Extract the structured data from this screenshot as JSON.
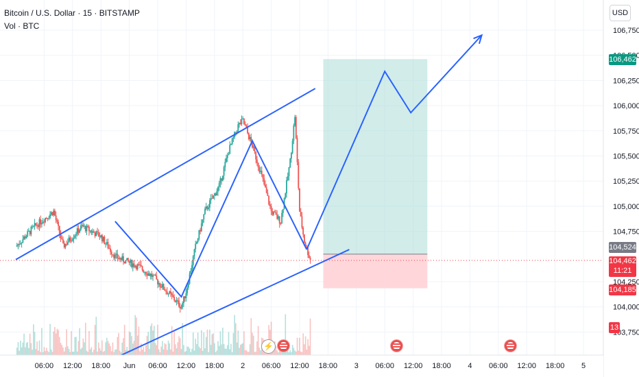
{
  "legend": {
    "title": "Bitcoin / U.S. Dollar · 15 · BITSTAMP",
    "volume": "Vol · BTC"
  },
  "currency": "USD",
  "price_axis": [
    {
      "label": "106,750",
      "value": 106750
    },
    {
      "label": "106,500",
      "value": 106500
    },
    {
      "label": "106,250",
      "value": 106250
    },
    {
      "label": "106,000",
      "value": 106000
    },
    {
      "label": "105,750",
      "value": 105750
    },
    {
      "label": "105,500",
      "value": 105500
    },
    {
      "label": "105,250",
      "value": 105250
    },
    {
      "label": "105,000",
      "value": 105000
    },
    {
      "label": "104,750",
      "value": 104750
    },
    {
      "label": "104,250",
      "value": 104250
    },
    {
      "label": "104,000",
      "value": 104000
    },
    {
      "label": "103,750",
      "value": 103750
    }
  ],
  "time_axis": [
    {
      "label": "06:00",
      "t": 6
    },
    {
      "label": "12:00",
      "t": 12
    },
    {
      "label": "18:00",
      "t": 18
    },
    {
      "label": "Jun",
      "t": 24
    },
    {
      "label": "06:00",
      "t": 30
    },
    {
      "label": "12:00",
      "t": 36
    },
    {
      "label": "18:00",
      "t": 42
    },
    {
      "label": "2",
      "t": 48
    },
    {
      "label": "06:00",
      "t": 54
    },
    {
      "label": "12:00",
      "t": 60
    },
    {
      "label": "18:00",
      "t": 66
    },
    {
      "label": "3",
      "t": 72
    },
    {
      "label": "06:00",
      "t": 78
    },
    {
      "label": "12:00",
      "t": 84
    },
    {
      "label": "18:00",
      "t": 90
    },
    {
      "label": "4",
      "t": 96
    },
    {
      "label": "06:00",
      "t": 102
    },
    {
      "label": "12:00",
      "t": 108
    },
    {
      "label": "18:00",
      "t": 114
    },
    {
      "label": "5",
      "t": 120
    },
    {
      "label": "06:00",
      "t": 126
    }
  ],
  "badges": {
    "target": "106,462",
    "entry": "104,524",
    "last_price": "104,462",
    "countdown": "11:21",
    "stop": "104,185",
    "volume": "13"
  },
  "colors": {
    "up": "#26a69a",
    "down": "#ef5350",
    "drawing": "#2962ff",
    "target_zone": "#b2dfdb",
    "stop_zone": "#ffcdd2",
    "target_badge": "#089981",
    "entry_badge": "#787b86",
    "price_badge": "#f23645"
  },
  "chart_data": {
    "type": "candlestick",
    "symbol": "Bitcoin / U.S. Dollar",
    "interval": "15",
    "exchange": "BITSTAMP",
    "y_range": [
      103700,
      106850
    ],
    "last_price": 104462,
    "path_points": [
      {
        "t": 0,
        "p": 104600
      },
      {
        "t": 4,
        "p": 104800
      },
      {
        "t": 8,
        "p": 104950
      },
      {
        "t": 10,
        "p": 104600
      },
      {
        "t": 14,
        "p": 104800
      },
      {
        "t": 18,
        "p": 104700
      },
      {
        "t": 21,
        "p": 104500
      },
      {
        "t": 26,
        "p": 104400
      },
      {
        "t": 29,
        "p": 104300
      },
      {
        "t": 33,
        "p": 104100
      },
      {
        "t": 35,
        "p": 104000
      },
      {
        "t": 36,
        "p": 104150
      },
      {
        "t": 38,
        "p": 104600
      },
      {
        "t": 40,
        "p": 104950
      },
      {
        "t": 43,
        "p": 105200
      },
      {
        "t": 45,
        "p": 105550
      },
      {
        "t": 47,
        "p": 105800
      },
      {
        "t": 48,
        "p": 105850
      },
      {
        "t": 50,
        "p": 105600
      },
      {
        "t": 52,
        "p": 105300
      },
      {
        "t": 54,
        "p": 104950
      },
      {
        "t": 56,
        "p": 104850
      },
      {
        "t": 58,
        "p": 105450
      },
      {
        "t": 59,
        "p": 105900
      },
      {
        "t": 60,
        "p": 104950
      },
      {
        "t": 61,
        "p": 104650
      },
      {
        "t": 62.3,
        "p": 104462
      }
    ],
    "trendlines": {
      "channel_upper": [
        {
          "t": 0,
          "p": 104470
        },
        {
          "t": 63.3,
          "p": 106170
        }
      ],
      "channel_lower": [
        {
          "t": 20,
          "p": 103470
        },
        {
          "t": 70.5,
          "p": 104570
        }
      ],
      "zigzag": [
        {
          "t": 21,
          "p": 104850
        },
        {
          "t": 35,
          "p": 104100
        },
        {
          "t": 50,
          "p": 105650
        },
        {
          "t": 61.5,
          "p": 104570
        }
      ],
      "projection": [
        {
          "t": 61.5,
          "p": 104570
        },
        {
          "t": 78,
          "p": 106340
        },
        {
          "t": 83.5,
          "p": 105930
        },
        {
          "t": 98.5,
          "p": 106700
        }
      ]
    },
    "long_position": {
      "entry": 104524,
      "target": 106462,
      "stop": 104185,
      "t_start": 65,
      "t_end": 87
    }
  }
}
